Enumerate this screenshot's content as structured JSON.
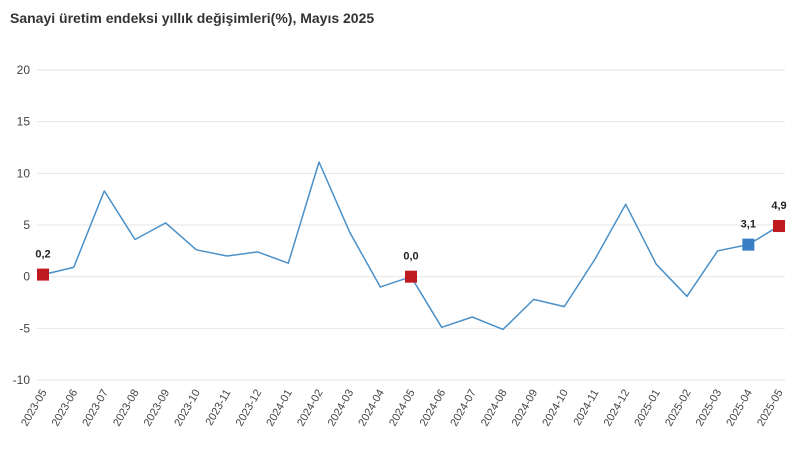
{
  "chart_data": {
    "type": "line",
    "title": "Sanayi üretim endeksi yıllık değişimleri(%), Mayıs 2025",
    "xlabel": "",
    "ylabel": "",
    "ylim": [
      -10,
      20
    ],
    "yticks": [
      "-10",
      "-5",
      "0",
      "5",
      "10",
      "15",
      "20"
    ],
    "grid": "horizontal",
    "categories": [
      "2023-05",
      "2023-06",
      "2023-07",
      "2023-08",
      "2023-09",
      "2023-10",
      "2023-11",
      "2023-12",
      "2024-01",
      "2024-02",
      "2024-03",
      "2024-04",
      "2024-05",
      "2024-06",
      "2024-07",
      "2024-08",
      "2024-09",
      "2024-10",
      "2024-11",
      "2024-12",
      "2025-01",
      "2025-02",
      "2025-03",
      "2025-04",
      "2025-05"
    ],
    "series": [
      {
        "values": [
          0.2,
          0.9,
          8.3,
          3.6,
          5.2,
          2.6,
          2.0,
          2.4,
          1.3,
          11.1,
          4.3,
          -1.0,
          0.0,
          -4.9,
          -3.9,
          -5.1,
          -2.2,
          -2.9,
          1.7,
          7.0,
          1.2,
          -1.9,
          2.5,
          3.1,
          4.9
        ],
        "color": "#4a90c8"
      }
    ],
    "highlighted_points": [
      {
        "category": "2023-05",
        "value": 0.2,
        "label": "0,2",
        "color": "#c0191f"
      },
      {
        "category": "2024-05",
        "value": 0.0,
        "label": "0,0",
        "color": "#c0191f"
      },
      {
        "category": "2025-04",
        "value": 3.1,
        "label": "3,1",
        "color": "#3a7ec6"
      },
      {
        "category": "2025-05",
        "value": 4.9,
        "label": "4,9",
        "color": "#c0191f"
      }
    ]
  }
}
